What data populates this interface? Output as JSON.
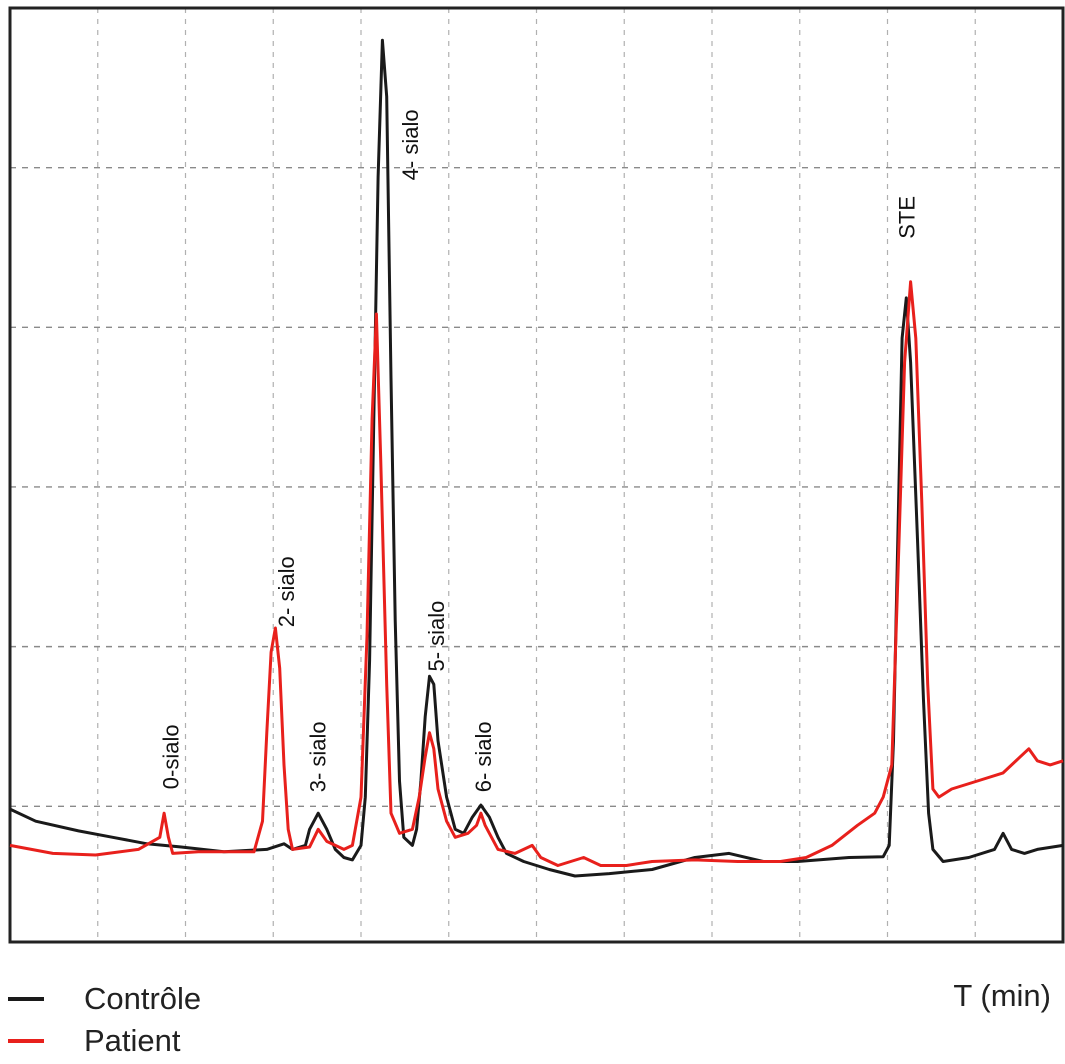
{
  "chart_data": {
    "type": "line",
    "xlabel": "T (min)",
    "ylabel": "",
    "xlim": [
      0,
      12.3
    ],
    "ylim": [
      0,
      11.6
    ],
    "grid": true,
    "legend_placement": "bottom-left",
    "series": [
      {
        "name": "Contrôle",
        "color": "#1a1a1a",
        "points": [
          [
            0,
            1.65
          ],
          [
            0.3,
            1.5
          ],
          [
            0.8,
            1.38
          ],
          [
            1.2,
            1.3
          ],
          [
            1.6,
            1.22
          ],
          [
            2,
            1.18
          ],
          [
            2.5,
            1.12
          ],
          [
            3,
            1.15
          ],
          [
            3.2,
            1.22
          ],
          [
            3.3,
            1.15
          ],
          [
            3.45,
            1.2
          ],
          [
            3.5,
            1.4
          ],
          [
            3.6,
            1.6
          ],
          [
            3.7,
            1.4
          ],
          [
            3.8,
            1.15
          ],
          [
            3.9,
            1.05
          ],
          [
            4,
            1.02
          ],
          [
            4.1,
            1.2
          ],
          [
            4.15,
            1.8
          ],
          [
            4.2,
            3.5
          ],
          [
            4.25,
            6.5
          ],
          [
            4.3,
            9.5
          ],
          [
            4.35,
            11.2
          ],
          [
            4.4,
            10.5
          ],
          [
            4.45,
            7
          ],
          [
            4.5,
            4
          ],
          [
            4.55,
            2
          ],
          [
            4.6,
            1.3
          ],
          [
            4.7,
            1.2
          ],
          [
            4.75,
            1.4
          ],
          [
            4.8,
            2.0
          ],
          [
            4.85,
            2.8
          ],
          [
            4.9,
            3.3
          ],
          [
            4.95,
            3.2
          ],
          [
            5.0,
            2.5
          ],
          [
            5.1,
            1.8
          ],
          [
            5.2,
            1.4
          ],
          [
            5.3,
            1.35
          ],
          [
            5.4,
            1.55
          ],
          [
            5.5,
            1.7
          ],
          [
            5.6,
            1.55
          ],
          [
            5.7,
            1.3
          ],
          [
            5.8,
            1.1
          ],
          [
            6,
            1.0
          ],
          [
            6.3,
            0.9
          ],
          [
            6.6,
            0.82
          ],
          [
            7,
            0.85
          ],
          [
            7.5,
            0.9
          ],
          [
            8,
            1.05
          ],
          [
            8.4,
            1.1
          ],
          [
            8.8,
            1.0
          ],
          [
            9.2,
            1.0
          ],
          [
            9.8,
            1.05
          ],
          [
            10.2,
            1.06
          ],
          [
            10.27,
            1.2
          ],
          [
            10.32,
            2.5
          ],
          [
            10.37,
            5
          ],
          [
            10.42,
            7.5
          ],
          [
            10.47,
            8.0
          ],
          [
            10.52,
            7.2
          ],
          [
            10.6,
            5
          ],
          [
            10.67,
            3
          ],
          [
            10.73,
            1.6
          ],
          [
            10.78,
            1.15
          ],
          [
            10.9,
            1.0
          ],
          [
            11.2,
            1.05
          ],
          [
            11.5,
            1.15
          ],
          [
            11.6,
            1.35
          ],
          [
            11.7,
            1.15
          ],
          [
            11.85,
            1.1
          ],
          [
            12.0,
            1.15
          ],
          [
            12.3,
            1.2
          ]
        ]
      },
      {
        "name": "Patient",
        "color": "#e8201c",
        "points": [
          [
            0,
            1.2
          ],
          [
            0.5,
            1.1
          ],
          [
            1,
            1.08
          ],
          [
            1.5,
            1.15
          ],
          [
            1.75,
            1.3
          ],
          [
            1.8,
            1.6
          ],
          [
            1.85,
            1.3
          ],
          [
            1.9,
            1.1
          ],
          [
            2.2,
            1.12
          ],
          [
            2.6,
            1.12
          ],
          [
            2.85,
            1.12
          ],
          [
            2.95,
            1.5
          ],
          [
            3.0,
            2.6
          ],
          [
            3.05,
            3.6
          ],
          [
            3.1,
            3.9
          ],
          [
            3.15,
            3.4
          ],
          [
            3.2,
            2.2
          ],
          [
            3.25,
            1.4
          ],
          [
            3.3,
            1.15
          ],
          [
            3.5,
            1.18
          ],
          [
            3.6,
            1.4
          ],
          [
            3.7,
            1.25
          ],
          [
            3.9,
            1.15
          ],
          [
            4.0,
            1.2
          ],
          [
            4.1,
            1.8
          ],
          [
            4.17,
            3.8
          ],
          [
            4.23,
            6.5
          ],
          [
            4.28,
            7.8
          ],
          [
            4.33,
            6.0
          ],
          [
            4.4,
            3.2
          ],
          [
            4.45,
            1.6
          ],
          [
            4.55,
            1.35
          ],
          [
            4.7,
            1.4
          ],
          [
            4.78,
            1.8
          ],
          [
            4.85,
            2.3
          ],
          [
            4.9,
            2.6
          ],
          [
            4.95,
            2.4
          ],
          [
            5.0,
            1.9
          ],
          [
            5.1,
            1.5
          ],
          [
            5.2,
            1.3
          ],
          [
            5.35,
            1.35
          ],
          [
            5.45,
            1.45
          ],
          [
            5.5,
            1.6
          ],
          [
            5.55,
            1.45
          ],
          [
            5.7,
            1.15
          ],
          [
            5.9,
            1.1
          ],
          [
            6.1,
            1.2
          ],
          [
            6.2,
            1.05
          ],
          [
            6.4,
            0.95
          ],
          [
            6.7,
            1.05
          ],
          [
            6.9,
            0.95
          ],
          [
            7.2,
            0.95
          ],
          [
            7.5,
            1.0
          ],
          [
            8,
            1.02
          ],
          [
            8.5,
            1.0
          ],
          [
            9,
            1.0
          ],
          [
            9.3,
            1.05
          ],
          [
            9.6,
            1.2
          ],
          [
            9.9,
            1.45
          ],
          [
            10.1,
            1.6
          ],
          [
            10.2,
            1.8
          ],
          [
            10.3,
            2.2
          ],
          [
            10.37,
            4.5
          ],
          [
            10.45,
            7.2
          ],
          [
            10.52,
            8.2
          ],
          [
            10.58,
            7.5
          ],
          [
            10.65,
            5.5
          ],
          [
            10.72,
            3.2
          ],
          [
            10.78,
            1.9
          ],
          [
            10.85,
            1.8
          ],
          [
            11.0,
            1.9
          ],
          [
            11.3,
            2.0
          ],
          [
            11.6,
            2.1
          ],
          [
            11.8,
            2.3
          ],
          [
            11.9,
            2.4
          ],
          [
            12.0,
            2.25
          ],
          [
            12.15,
            2.2
          ],
          [
            12.3,
            2.25
          ]
        ]
      }
    ],
    "annotations": [
      {
        "text": "0-sialo",
        "x": 1.9,
        "y": 2.3
      },
      {
        "text": "2- sialo",
        "x": 3.25,
        "y": 4.35
      },
      {
        "text": "3- sialo",
        "x": 3.62,
        "y": 2.3
      },
      {
        "text": "4- sialo",
        "x": 4.7,
        "y": 9.9
      },
      {
        "text": "5- sialo",
        "x": 5.0,
        "y": 3.8
      },
      {
        "text": "6- sialo",
        "x": 5.55,
        "y": 2.3
      },
      {
        "text": "STE",
        "x": 10.5,
        "y": 9.0
      }
    ]
  }
}
